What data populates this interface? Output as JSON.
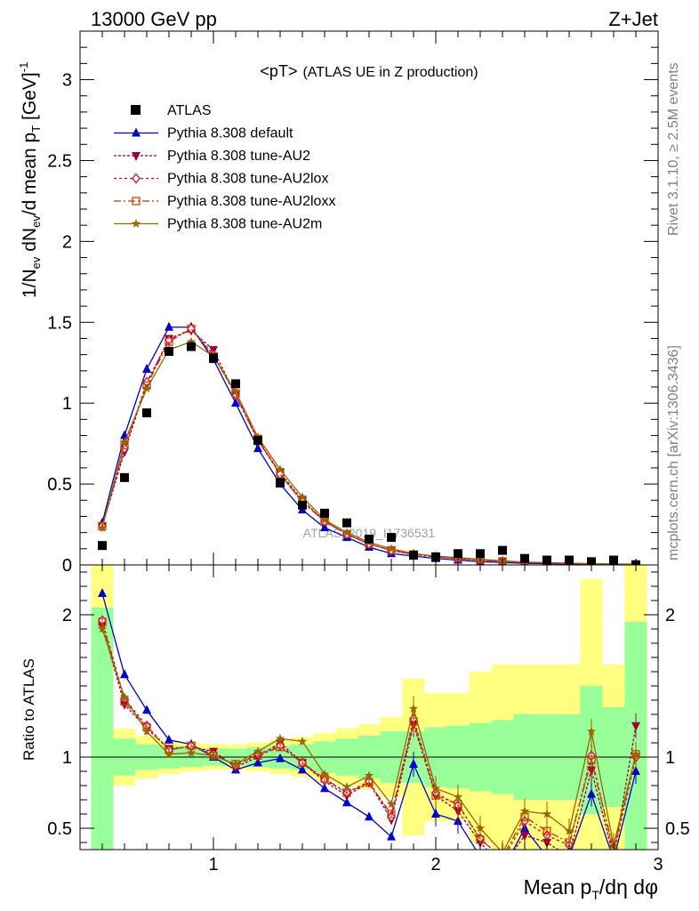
{
  "header": {
    "left": "13000 GeV pp",
    "right": "Z+Jet"
  },
  "side_labels": {
    "rivet": "Rivet 3.1.10, ≥ 2.5M events",
    "mcplots": "mcplots.cern.ch [arXiv:1306.3436]"
  },
  "chart_data": {
    "type": "line",
    "title": "<pT>",
    "subtitle": "(ATLAS UE in Z production)",
    "watermark": "ATLAS_2019_I1736531",
    "xlabel": "Mean p_T/dη dφ",
    "ylabel": "1/N_ev dN_ev/d mean p_T [GeV]^-1",
    "xlim": [
      0.4,
      3.0
    ],
    "ylim_main": [
      0,
      3.3
    ],
    "ylim_ratio": [
      0.35,
      2.35
    ],
    "ratio_ylabel": "Ratio to ATLAS",
    "main_yticks": [
      0,
      0.5,
      1,
      1.5,
      2,
      2.5,
      3
    ],
    "ratio_yticks": [
      0.5,
      1,
      2
    ],
    "xticks": [
      1,
      2,
      3
    ],
    "x": [
      0.5,
      0.6,
      0.7,
      0.8,
      0.9,
      1.0,
      1.1,
      1.2,
      1.3,
      1.4,
      1.5,
      1.6,
      1.7,
      1.8,
      1.9,
      2.0,
      2.1,
      2.2,
      2.3,
      2.4,
      2.5,
      2.6,
      2.7,
      2.8,
      2.9
    ],
    "data_series": {
      "name": "ATLAS",
      "values": [
        0.12,
        0.54,
        0.94,
        1.32,
        1.35,
        1.28,
        1.12,
        0.77,
        0.51,
        0.37,
        0.32,
        0.26,
        0.16,
        0.17,
        0.06,
        0.05,
        0.07,
        0.07,
        0.09,
        0.04,
        0.03,
        0.03,
        0.02,
        0.03,
        0.0
      ]
    },
    "series": [
      {
        "name": "Pythia 8.308 default",
        "color": "#0000cc",
        "dash": "",
        "marker": "triangle-up",
        "values": [
          0.26,
          0.8,
          1.21,
          1.47,
          1.47,
          1.27,
          1.0,
          0.72,
          0.5,
          0.34,
          0.23,
          0.17,
          0.11,
          0.07,
          0.055,
          0.04,
          0.03,
          0.02,
          0.015,
          0.01,
          0.008,
          0.006,
          0.005,
          0.004,
          0.003
        ],
        "ratio": [
          2.15,
          1.58,
          1.33,
          1.12,
          1.09,
          1.0,
          0.91,
          0.96,
          0.99,
          0.91,
          0.78,
          0.68,
          0.58,
          0.44,
          0.95,
          0.6,
          0.55,
          0.3,
          0.2,
          0.5,
          0.3,
          0.3,
          0.74,
          0.28,
          0.9
        ]
      },
      {
        "name": "Pythia 8.308 tune-AU2",
        "color": "#990033",
        "dash": "3,2",
        "marker": "triangle-down",
        "values": [
          0.24,
          0.7,
          1.12,
          1.4,
          1.45,
          1.33,
          1.05,
          0.77,
          0.57,
          0.4,
          0.27,
          0.19,
          0.13,
          0.09,
          0.065,
          0.05,
          0.04,
          0.03,
          0.022,
          0.015,
          0.012,
          0.009,
          0.007,
          0.005,
          0.004
        ],
        "ratio": [
          1.92,
          1.37,
          1.2,
          1.06,
          1.07,
          1.04,
          0.93,
          1.0,
          1.1,
          0.96,
          0.83,
          0.73,
          0.82,
          0.56,
          1.23,
          0.73,
          0.62,
          0.4,
          0.23,
          0.45,
          0.4,
          0.3,
          0.91,
          0.3,
          1.22
        ]
      },
      {
        "name": "Pythia 8.308 tune-AU2lox",
        "color": "#cc0033",
        "dash": "3,3",
        "marker": "diamond",
        "values": [
          0.24,
          0.72,
          1.13,
          1.39,
          1.46,
          1.3,
          1.05,
          0.77,
          0.56,
          0.39,
          0.27,
          0.19,
          0.13,
          0.09,
          0.065,
          0.05,
          0.04,
          0.03,
          0.022,
          0.015,
          0.012,
          0.009,
          0.007,
          0.005,
          0.004
        ],
        "ratio": [
          1.96,
          1.41,
          1.22,
          1.05,
          1.08,
          1.02,
          0.94,
          1.02,
          1.08,
          0.96,
          0.84,
          0.75,
          0.83,
          0.58,
          1.27,
          0.75,
          0.66,
          0.43,
          0.28,
          0.55,
          0.45,
          0.38,
          1.01,
          0.32,
          1.0
        ]
      },
      {
        "name": "Pythia 8.308 tune-AU2loxx",
        "color": "#cc3300",
        "dash": "8,3,2,3",
        "marker": "square-open",
        "values": [
          0.24,
          0.74,
          1.11,
          1.38,
          1.46,
          1.29,
          1.06,
          0.78,
          0.56,
          0.39,
          0.27,
          0.19,
          0.13,
          0.09,
          0.065,
          0.05,
          0.04,
          0.03,
          0.022,
          0.015,
          0.012,
          0.009,
          0.007,
          0.005,
          0.004
        ],
        "ratio": [
          1.95,
          1.39,
          1.21,
          1.05,
          1.08,
          1.01,
          0.95,
          1.01,
          1.07,
          0.96,
          0.85,
          0.75,
          0.82,
          0.6,
          1.25,
          0.73,
          0.67,
          0.42,
          0.3,
          0.58,
          0.48,
          0.4,
          0.98,
          0.35,
          1.02
        ]
      },
      {
        "name": "Pythia 8.308 tune-AU2m",
        "color": "#996600",
        "dash": "",
        "marker": "star",
        "values": [
          0.23,
          0.76,
          1.09,
          1.33,
          1.38,
          1.29,
          1.07,
          0.79,
          0.59,
          0.42,
          0.28,
          0.2,
          0.14,
          0.1,
          0.07,
          0.055,
          0.045,
          0.035,
          0.025,
          0.018,
          0.014,
          0.011,
          0.008,
          0.006,
          0.005
        ],
        "ratio": [
          1.9,
          1.42,
          1.18,
          1.02,
          1.03,
          1.01,
          0.95,
          1.04,
          1.13,
          1.11,
          0.88,
          0.79,
          0.87,
          0.67,
          1.34,
          0.78,
          0.72,
          0.5,
          0.33,
          0.62,
          0.6,
          0.48,
          1.18,
          0.38,
          1.02
        ]
      }
    ],
    "uncertainty_bands": {
      "green_lo": [
        0.35,
        0.87,
        0.91,
        0.92,
        0.93,
        0.94,
        0.94,
        0.93,
        0.92,
        0.91,
        0.89,
        0.87,
        0.85,
        0.82,
        0.82,
        0.79,
        0.78,
        0.76,
        0.74,
        0.7,
        0.7,
        0.7,
        0.6,
        0.65,
        0.35
      ],
      "green_hi": [
        2.05,
        1.13,
        1.09,
        1.08,
        1.07,
        1.06,
        1.06,
        1.07,
        1.08,
        1.09,
        1.11,
        1.13,
        1.15,
        1.18,
        1.18,
        1.21,
        1.22,
        1.24,
        1.26,
        1.3,
        1.3,
        1.3,
        1.5,
        1.35,
        1.95
      ],
      "yellow_lo": [
        0.35,
        0.8,
        0.85,
        0.88,
        0.9,
        0.91,
        0.91,
        0.9,
        0.88,
        0.86,
        0.83,
        0.8,
        0.77,
        0.72,
        0.45,
        0.55,
        0.55,
        0.4,
        0.35,
        0.35,
        0.35,
        0.35,
        0.35,
        0.35,
        0.35
      ],
      "yellow_hi": [
        2.35,
        1.2,
        1.15,
        1.12,
        1.1,
        1.09,
        1.09,
        1.1,
        1.12,
        1.14,
        1.17,
        1.2,
        1.23,
        1.28,
        1.55,
        1.45,
        1.45,
        1.6,
        1.65,
        1.65,
        1.65,
        1.65,
        2.25,
        1.65,
        2.35
      ]
    }
  }
}
